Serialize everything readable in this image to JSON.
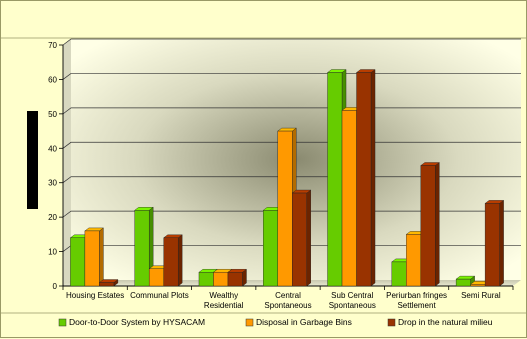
{
  "chart_data": {
    "type": "bar",
    "categories": [
      [
        "Housing Estates"
      ],
      [
        "Communal Plots"
      ],
      [
        "Wealthy",
        "Residential"
      ],
      [
        "Central",
        "Spontaneous"
      ],
      [
        "Sub Central",
        "Spontaneous"
      ],
      [
        "Periurban fringes",
        "Settlement"
      ],
      [
        "Semi Rural"
      ]
    ],
    "series": [
      {
        "name": "Door-to-Door System by HYSACAM",
        "color": "#66cc00",
        "values": [
          14,
          22,
          4,
          22,
          62,
          7,
          2
        ]
      },
      {
        "name": "Disposal in Garbage Bins",
        "color": "#ff9900",
        "values": [
          16,
          5,
          4,
          45,
          51,
          15,
          0.5
        ]
      },
      {
        "name": "Drop in the natural milieu",
        "color": "#993300",
        "values": [
          1,
          14,
          4,
          27,
          62,
          35,
          24
        ]
      }
    ],
    "ylim": [
      0,
      70
    ],
    "yticks": [
      0,
      10,
      20,
      30,
      40,
      50,
      60,
      70
    ],
    "grid": true,
    "legend_position": "bottom",
    "style": "3d-bar"
  }
}
